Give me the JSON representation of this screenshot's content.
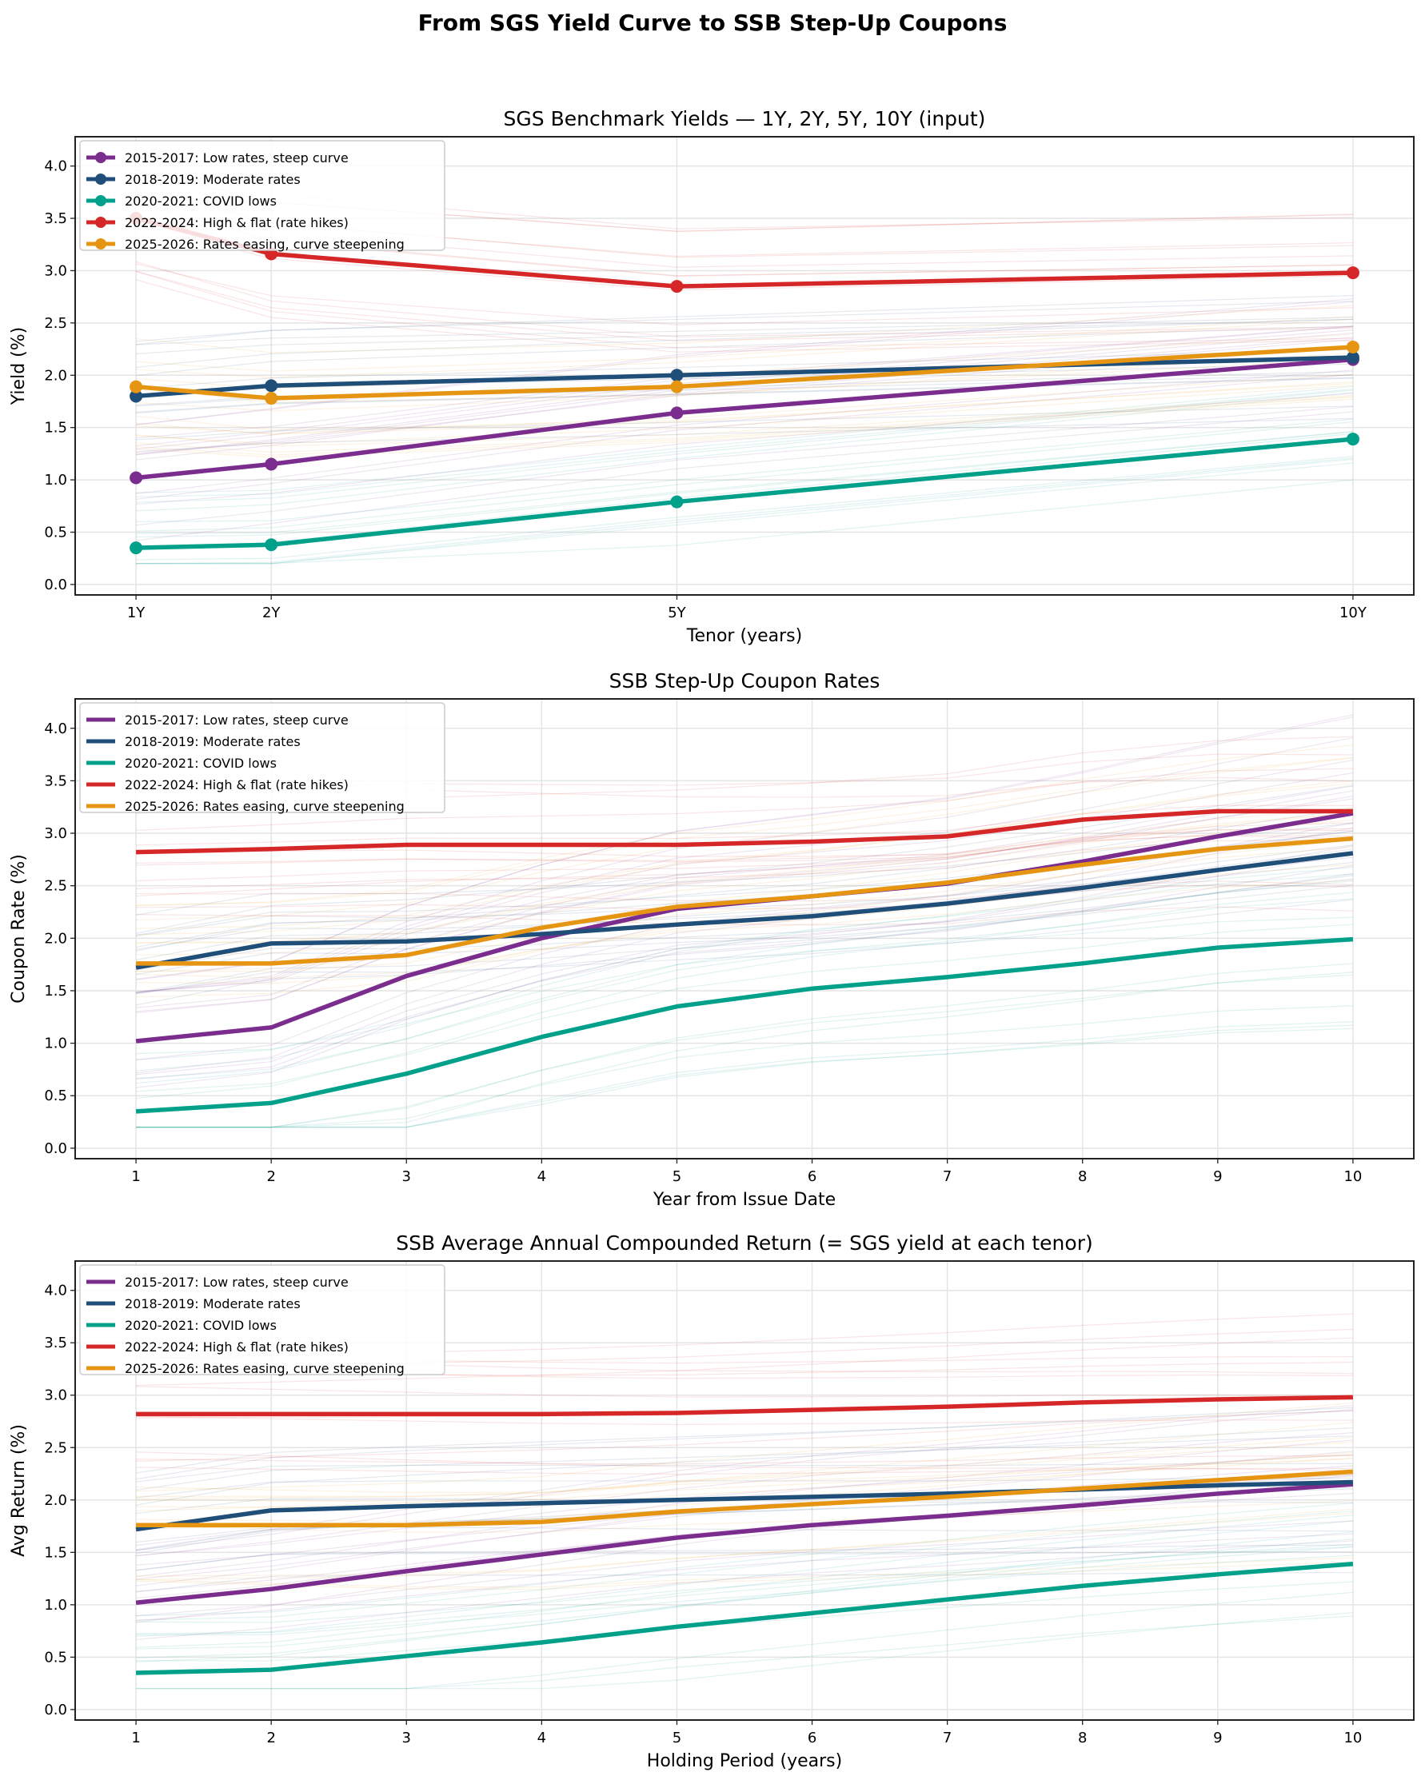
{
  "title": "From SGS Yield Curve to SSB Step-Up Coupons",
  "colors": {
    "2015-2017": "#7b2d8e",
    "2018-2019": "#1f4e79",
    "2020-2021": "#00a08a",
    "2022-2024": "#d62728",
    "2025-2026": "#e69512"
  },
  "chart_data": [
    {
      "type": "line",
      "title": "SGS Benchmark Yields — 1Y, 2Y, 5Y, 10Y (input)",
      "xlabel": "Tenor (years)",
      "ylabel": "Yield (%)",
      "x": [
        1,
        2,
        5,
        10
      ],
      "xtick_labels": [
        "1Y",
        "2Y",
        "5Y",
        "10Y"
      ],
      "yticks": [
        "0.0",
        "0.5",
        "1.0",
        "1.5",
        "2.0",
        "2.5",
        "3.0",
        "3.5",
        "4.0"
      ],
      "xlim": [
        0.55,
        10.45
      ],
      "ylim": [
        -0.1,
        4.28
      ],
      "markers": true,
      "grid": true,
      "legend": "top-left",
      "series": [
        {
          "key": "2015-2017",
          "name": "2015-2017: Low rates, steep curve",
          "values": [
            1.02,
            1.15,
            1.64,
            2.15
          ]
        },
        {
          "key": "2018-2019",
          "name": "2018-2019: Moderate rates",
          "values": [
            1.8,
            1.9,
            2.0,
            2.17
          ]
        },
        {
          "key": "2020-2021",
          "name": "2020-2021: COVID lows",
          "values": [
            0.35,
            0.38,
            0.79,
            1.39
          ]
        },
        {
          "key": "2022-2024",
          "name": "2022-2024: High & flat (rate hikes)",
          "values": [
            3.5,
            3.16,
            2.85,
            2.98
          ]
        },
        {
          "key": "2025-2026",
          "name": "2025-2026: Rates easing, curve steepening",
          "values": [
            1.89,
            1.78,
            1.89,
            2.27
          ]
        }
      ]
    },
    {
      "type": "line",
      "title": "SSB Step-Up Coupon Rates",
      "xlabel": "Year from Issue Date",
      "ylabel": "Coupon Rate (%)",
      "x": [
        1,
        2,
        3,
        4,
        5,
        6,
        7,
        8,
        9,
        10
      ],
      "xtick_labels": [
        "1",
        "2",
        "3",
        "4",
        "5",
        "6",
        "7",
        "8",
        "9",
        "10"
      ],
      "yticks": [
        "0.0",
        "0.5",
        "1.0",
        "1.5",
        "2.0",
        "2.5",
        "3.0",
        "3.5",
        "4.0"
      ],
      "xlim": [
        0.55,
        10.45
      ],
      "ylim": [
        -0.1,
        4.28
      ],
      "markers": false,
      "grid": true,
      "legend": "top-left",
      "series": [
        {
          "key": "2015-2017",
          "name": "2015-2017: Low rates, steep curve",
          "values": [
            1.02,
            1.15,
            1.64,
            2.0,
            2.28,
            2.4,
            2.52,
            2.73,
            2.97,
            3.19
          ]
        },
        {
          "key": "2018-2019",
          "name": "2018-2019: Moderate rates",
          "values": [
            1.72,
            1.95,
            1.97,
            2.04,
            2.13,
            2.21,
            2.33,
            2.48,
            2.65,
            2.81
          ]
        },
        {
          "key": "2020-2021",
          "name": "2020-2021: COVID lows",
          "values": [
            0.35,
            0.43,
            0.71,
            1.06,
            1.35,
            1.52,
            1.63,
            1.76,
            1.91,
            1.99
          ]
        },
        {
          "key": "2022-2024",
          "name": "2022-2024: High & flat (rate hikes)",
          "values": [
            2.82,
            2.85,
            2.89,
            2.89,
            2.89,
            2.92,
            2.97,
            3.13,
            3.21,
            3.21
          ]
        },
        {
          "key": "2025-2026",
          "name": "2025-2026: Rates easing, curve steepening",
          "values": [
            1.76,
            1.76,
            1.84,
            2.1,
            2.3,
            2.4,
            2.53,
            2.7,
            2.85,
            2.95
          ]
        }
      ]
    },
    {
      "type": "line",
      "title": "SSB Average Annual Compounded Return (= SGS yield at each tenor)",
      "xlabel": "Holding Period (years)",
      "ylabel": "Avg Return (%)",
      "x": [
        1,
        2,
        3,
        4,
        5,
        6,
        7,
        8,
        9,
        10
      ],
      "xtick_labels": [
        "1",
        "2",
        "3",
        "4",
        "5",
        "6",
        "7",
        "8",
        "9",
        "10"
      ],
      "yticks": [
        "0.0",
        "0.5",
        "1.0",
        "1.5",
        "2.0",
        "2.5",
        "3.0",
        "3.5",
        "4.0"
      ],
      "xlim": [
        0.55,
        10.45
      ],
      "ylim": [
        -0.1,
        4.28
      ],
      "markers": false,
      "grid": true,
      "legend": "top-left",
      "series": [
        {
          "key": "2015-2017",
          "name": "2015-2017: Low rates, steep curve",
          "values": [
            1.02,
            1.15,
            1.32,
            1.48,
            1.64,
            1.76,
            1.85,
            1.95,
            2.06,
            2.15
          ]
        },
        {
          "key": "2018-2019",
          "name": "2018-2019: Moderate rates",
          "values": [
            1.72,
            1.9,
            1.94,
            1.97,
            2.0,
            2.03,
            2.06,
            2.1,
            2.14,
            2.17
          ]
        },
        {
          "key": "2020-2021",
          "name": "2020-2021: COVID lows",
          "values": [
            0.35,
            0.38,
            0.51,
            0.64,
            0.79,
            0.92,
            1.05,
            1.18,
            1.29,
            1.39
          ]
        },
        {
          "key": "2022-2024",
          "name": "2022-2024: High & flat (rate hikes)",
          "values": [
            2.82,
            2.82,
            2.82,
            2.82,
            2.83,
            2.86,
            2.89,
            2.93,
            2.96,
            2.98
          ]
        },
        {
          "key": "2025-2026",
          "name": "2025-2026: Rates easing, curve steepening",
          "values": [
            1.76,
            1.76,
            1.76,
            1.79,
            1.89,
            1.96,
            2.03,
            2.11,
            2.19,
            2.27
          ]
        }
      ]
    }
  ]
}
